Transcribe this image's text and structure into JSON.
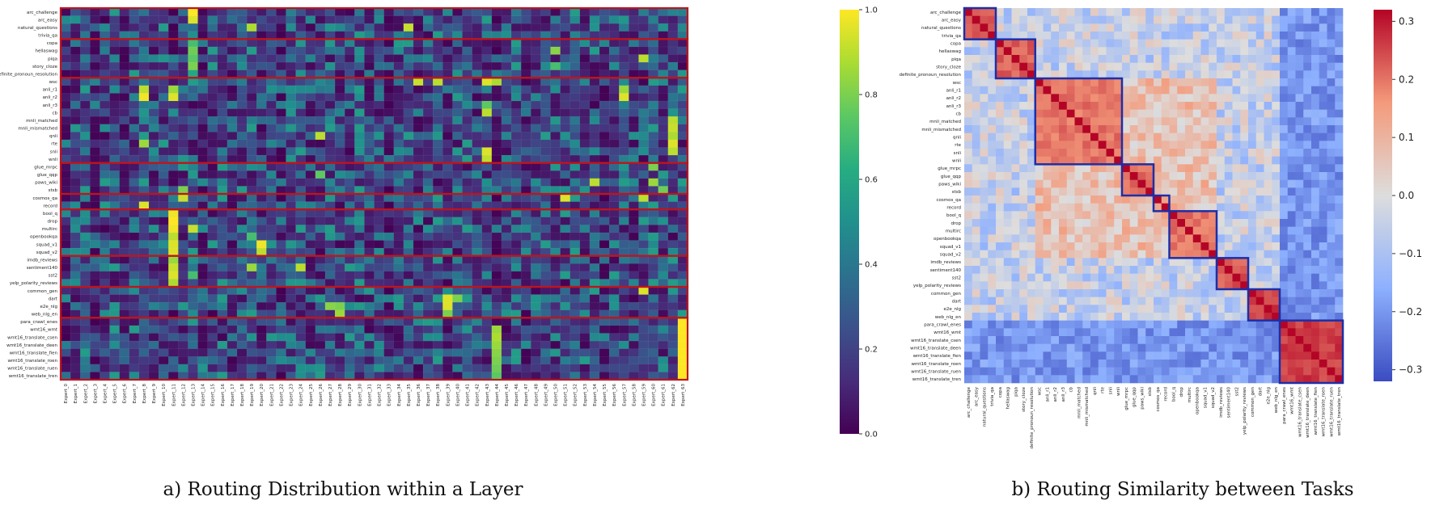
{
  "captions": {
    "a": "a) Routing Distribution within a Layer",
    "b": "b) Routing Similarity between Tasks"
  },
  "colors": {
    "group_box_a": "#c0141b",
    "group_box_b": "#1c2fa8"
  },
  "chart_data": [
    {
      "type": "heatmap",
      "title": "a) Routing Distribution within a Layer",
      "rows": [
        "arc_challenge",
        "arc_easy",
        "natural_questions",
        "trivia_qa",
        "copa",
        "hellaswag",
        "piqa",
        "story_cloze",
        "definite_pronoun_resolution",
        "wsc",
        "anli_r1",
        "anli_r2",
        "anli_r3",
        "cb",
        "mnli_matched",
        "mnli_mismatched",
        "qnli",
        "rte",
        "snli",
        "wnli",
        "glue_mrpc",
        "glue_qqp",
        "paws_wiki",
        "stsb",
        "cosmos_qa",
        "record",
        "bool_q",
        "drop",
        "multirc",
        "openbookqa",
        "squad_v1",
        "squad_v2",
        "imdb_reviews",
        "sentiment140",
        "sst2",
        "yelp_polarity_reviews",
        "common_gen",
        "dart",
        "e2e_nlg",
        "web_nlg_en",
        "para_crawl_enes",
        "wmt16_wmt",
        "wmt16_translate_csen",
        "wmt16_translate_deen",
        "wmt16_translate_fien",
        "wmt16_translate_roen",
        "wmt16_translate_ruen",
        "wmt16_translate_tren"
      ],
      "columns": [
        "Expert_0",
        "Expert_1",
        "Expert_2",
        "Expert_3",
        "Expert_4",
        "Expert_5",
        "Expert_6",
        "Expert_7",
        "Expert_8",
        "Expert_9",
        "Expert_10",
        "Expert_11",
        "Expert_12",
        "Expert_13",
        "Expert_14",
        "Expert_15",
        "Expert_16",
        "Expert_17",
        "Expert_18",
        "Expert_19",
        "Expert_20",
        "Expert_21",
        "Expert_22",
        "Expert_23",
        "Expert_24",
        "Expert_25",
        "Expert_26",
        "Expert_27",
        "Expert_28",
        "Expert_29",
        "Expert_30",
        "Expert_31",
        "Expert_32",
        "Expert_33",
        "Expert_34",
        "Expert_35",
        "Expert_36",
        "Expert_37",
        "Expert_38",
        "Expert_39",
        "Expert_40",
        "Expert_41",
        "Expert_42",
        "Expert_43",
        "Expert_44",
        "Expert_45",
        "Expert_46",
        "Expert_47",
        "Expert_48",
        "Expert_49",
        "Expert_50",
        "Expert_51",
        "Expert_52",
        "Expert_53",
        "Expert_54",
        "Expert_55",
        "Expert_56",
        "Expert_57",
        "Expert_58",
        "Expert_59",
        "Expert_60",
        "Expert_61",
        "Expert_62",
        "Expert_63"
      ],
      "groups": [
        [
          0,
          3
        ],
        [
          4,
          8
        ],
        [
          9,
          19
        ],
        [
          20,
          23
        ],
        [
          24,
          25
        ],
        [
          26,
          31
        ],
        [
          32,
          35
        ],
        [
          36,
          39
        ],
        [
          40,
          47
        ]
      ],
      "hotspots": [
        [
          0,
          13,
          1.0
        ],
        [
          1,
          13,
          0.95
        ],
        [
          2,
          35,
          0.92
        ],
        [
          2,
          19,
          0.88
        ],
        [
          3,
          13,
          0.5
        ],
        [
          4,
          13,
          0.7
        ],
        [
          5,
          13,
          0.78
        ],
        [
          5,
          50,
          0.82
        ],
        [
          6,
          13,
          0.75
        ],
        [
          6,
          59,
          0.9
        ],
        [
          7,
          13,
          0.8
        ],
        [
          7,
          50,
          0.7
        ],
        [
          8,
          13,
          0.6
        ],
        [
          9,
          36,
          0.92
        ],
        [
          9,
          38,
          0.9
        ],
        [
          9,
          43,
          0.95
        ],
        [
          9,
          44,
          0.88
        ],
        [
          10,
          8,
          0.9
        ],
        [
          10,
          11,
          0.85
        ],
        [
          10,
          57,
          0.85
        ],
        [
          11,
          8,
          0.98
        ],
        [
          11,
          11,
          0.95
        ],
        [
          11,
          57,
          0.95
        ],
        [
          12,
          43,
          0.75
        ],
        [
          13,
          43,
          0.9
        ],
        [
          14,
          62,
          0.9
        ],
        [
          15,
          62,
          0.92
        ],
        [
          16,
          62,
          0.88
        ],
        [
          16,
          26,
          0.9
        ],
        [
          17,
          8,
          0.85
        ],
        [
          17,
          62,
          0.95
        ],
        [
          18,
          43,
          0.95
        ],
        [
          18,
          62,
          0.9
        ],
        [
          19,
          43,
          0.9
        ],
        [
          20,
          60,
          0.8
        ],
        [
          21,
          26,
          0.75
        ],
        [
          22,
          54,
          0.9
        ],
        [
          22,
          60,
          0.85
        ],
        [
          23,
          12,
          0.8
        ],
        [
          23,
          61,
          0.78
        ],
        [
          24,
          12,
          0.92
        ],
        [
          24,
          51,
          0.95
        ],
        [
          24,
          59,
          0.9
        ],
        [
          25,
          8,
          0.95
        ],
        [
          26,
          11,
          0.98
        ],
        [
          27,
          11,
          1.0
        ],
        [
          28,
          11,
          0.98
        ],
        [
          28,
          13,
          0.92
        ],
        [
          29,
          11,
          0.9
        ],
        [
          29,
          19,
          0.7
        ],
        [
          30,
          11,
          0.95
        ],
        [
          30,
          20,
          0.98
        ],
        [
          31,
          11,
          0.95
        ],
        [
          31,
          20,
          0.9
        ],
        [
          32,
          11,
          0.85
        ],
        [
          33,
          11,
          0.92
        ],
        [
          33,
          24,
          0.9
        ],
        [
          33,
          19,
          0.85
        ],
        [
          34,
          11,
          0.95
        ],
        [
          34,
          13,
          0.7
        ],
        [
          35,
          11,
          0.88
        ],
        [
          36,
          59,
          0.95
        ],
        [
          37,
          39,
          0.95
        ],
        [
          37,
          40,
          0.8
        ],
        [
          38,
          39,
          0.95
        ],
        [
          38,
          27,
          0.82
        ],
        [
          38,
          28,
          0.8
        ],
        [
          39,
          39,
          0.8
        ],
        [
          39,
          28,
          0.85
        ],
        [
          40,
          63,
          1.0
        ],
        [
          41,
          63,
          1.0
        ],
        [
          42,
          63,
          1.0
        ],
        [
          43,
          63,
          1.0
        ],
        [
          44,
          63,
          1.0
        ],
        [
          45,
          63,
          1.0
        ],
        [
          46,
          63,
          1.0
        ],
        [
          47,
          63,
          1.0
        ],
        [
          41,
          44,
          0.85
        ],
        [
          42,
          44,
          0.88
        ],
        [
          43,
          44,
          0.85
        ],
        [
          44,
          44,
          0.82
        ],
        [
          45,
          44,
          0.8
        ],
        [
          46,
          44,
          0.78
        ],
        [
          47,
          44,
          0.75
        ]
      ],
      "colorbar": {
        "min": 0.0,
        "max": 1.0,
        "ticks": [
          "0.0",
          "0.2",
          "0.4",
          "0.6",
          "0.8",
          "1.0"
        ]
      },
      "colormap": "viridis"
    },
    {
      "type": "heatmap",
      "title": "b) Routing Similarity between Tasks",
      "rows": [
        "arc_challenge",
        "arc_easy",
        "natural_questions",
        "trivia_qa",
        "copa",
        "hellaswag",
        "piqa",
        "story_cloze",
        "definite_pronoun_resolution",
        "wsc",
        "anli_r1",
        "anli_r2",
        "anli_r3",
        "cb",
        "mnli_matched",
        "mnli_mismatched",
        "qnli",
        "rte",
        "snli",
        "wnli",
        "glue_mrpc",
        "glue_qqp",
        "paws_wiki",
        "stsb",
        "cosmos_qa",
        "record",
        "bool_q",
        "drop",
        "multirc",
        "openbookqa",
        "squad_v1",
        "squad_v2",
        "imdb_reviews",
        "sentiment140",
        "sst2",
        "yelp_polarity_reviews",
        "common_gen",
        "dart",
        "e2e_nlg",
        "web_nlg_en",
        "para_crawl_enes",
        "wmt16_wmt",
        "wmt16_translate_csen",
        "wmt16_translate_deen",
        "wmt16_translate_fien",
        "wmt16_translate_roen",
        "wmt16_translate_ruen",
        "wmt16_translate_tren"
      ],
      "columns": [
        "arc_challenge",
        "arc_easy",
        "natural_questions",
        "trivia_qa",
        "copa",
        "hellaswag",
        "piqa",
        "story_cloze",
        "definite_pronoun_resolution",
        "wsc",
        "anli_r1",
        "anli_r2",
        "anli_r3",
        "cb",
        "mnli_matched",
        "mnli_mismatched",
        "qnli",
        "rte",
        "snli",
        "wnli",
        "glue_mrpc",
        "glue_qqp",
        "paws_wiki",
        "stsb",
        "cosmos_qa",
        "record",
        "bool_q",
        "drop",
        "multirc",
        "openbookqa",
        "squad_v1",
        "squad_v2",
        "imdb_reviews",
        "sentiment140",
        "sst2",
        "yelp_polarity_reviews",
        "common_gen",
        "dart",
        "e2e_nlg",
        "web_nlg_en",
        "para_crawl_enes",
        "wmt16_wmt",
        "wmt16_translate_csen",
        "wmt16_translate_deen",
        "wmt16_translate_fien",
        "wmt16_translate_roen",
        "wmt16_translate_ruen",
        "wmt16_translate_tren"
      ],
      "groups": [
        [
          0,
          3
        ],
        [
          4,
          8
        ],
        [
          9,
          19
        ],
        [
          20,
          23
        ],
        [
          24,
          25
        ],
        [
          26,
          31
        ],
        [
          32,
          35
        ],
        [
          36,
          39
        ],
        [
          40,
          47
        ]
      ],
      "within_group_similarity": [
        0.24,
        0.22,
        0.2,
        0.2,
        0.16,
        0.2,
        0.23,
        0.26,
        0.26
      ],
      "colorbar": {
        "min": -0.32,
        "max": 0.32,
        "ticks": [
          "0.3",
          "0.2",
          "0.1",
          "0.0",
          "−0.1",
          "−0.2",
          "−0.3"
        ],
        "tick_values": [
          0.3,
          0.2,
          0.1,
          0.0,
          -0.1,
          -0.2,
          -0.3
        ]
      },
      "colormap": "coolwarm"
    }
  ]
}
